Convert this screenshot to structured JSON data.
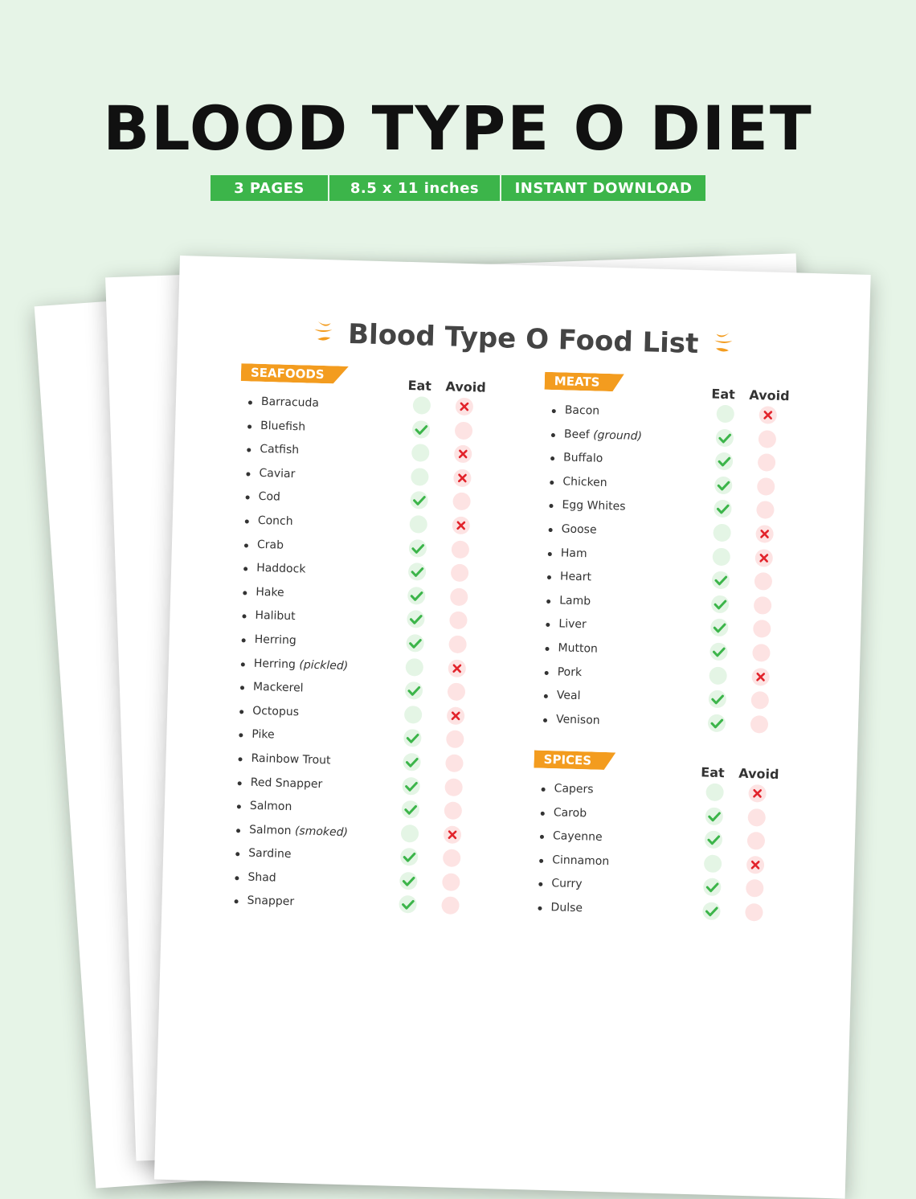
{
  "title": "BLOOD TYPE O DIET",
  "info_bar": [
    "3 PAGES",
    "8.5 x 11 inches",
    "INSTANT DOWNLOAD"
  ],
  "document": {
    "title": "Blood Type O Food List",
    "sections": [
      {
        "label": "SEAFOODS",
        "eat_label": "Eat",
        "avoid_label": "Avoid",
        "items": [
          {
            "name": "Barracuda",
            "note": "",
            "verdict": "avoid"
          },
          {
            "name": "Bluefish",
            "note": "",
            "verdict": "eat"
          },
          {
            "name": "Catfish",
            "note": "",
            "verdict": "avoid"
          },
          {
            "name": "Caviar",
            "note": "",
            "verdict": "avoid"
          },
          {
            "name": "Cod",
            "note": "",
            "verdict": "eat"
          },
          {
            "name": "Conch",
            "note": "",
            "verdict": "avoid"
          },
          {
            "name": "Crab",
            "note": "",
            "verdict": "eat"
          },
          {
            "name": "Haddock",
            "note": "",
            "verdict": "eat"
          },
          {
            "name": "Hake",
            "note": "",
            "verdict": "eat"
          },
          {
            "name": "Halibut",
            "note": "",
            "verdict": "eat"
          },
          {
            "name": "Herring",
            "note": "",
            "verdict": "eat"
          },
          {
            "name": "Herring",
            "note": "(pickled)",
            "verdict": "avoid"
          },
          {
            "name": "Mackerel",
            "note": "",
            "verdict": "eat"
          },
          {
            "name": "Octopus",
            "note": "",
            "verdict": "avoid"
          },
          {
            "name": "Pike",
            "note": "",
            "verdict": "eat"
          },
          {
            "name": "Rainbow Trout",
            "note": "",
            "verdict": "eat"
          },
          {
            "name": "Red Snapper",
            "note": "",
            "verdict": "eat"
          },
          {
            "name": "Salmon",
            "note": "",
            "verdict": "eat"
          },
          {
            "name": "Salmon",
            "note": "(smoked)",
            "verdict": "avoid"
          },
          {
            "name": "Sardine",
            "note": "",
            "verdict": "eat"
          },
          {
            "name": "Shad",
            "note": "",
            "verdict": "eat"
          },
          {
            "name": "Snapper",
            "note": "",
            "verdict": "eat"
          }
        ]
      },
      {
        "label": "MEATS",
        "eat_label": "Eat",
        "avoid_label": "Avoid",
        "items": [
          {
            "name": "Bacon",
            "note": "",
            "verdict": "avoid"
          },
          {
            "name": "Beef",
            "note": "(ground)",
            "verdict": "eat"
          },
          {
            "name": "Buffalo",
            "note": "",
            "verdict": "eat"
          },
          {
            "name": "Chicken",
            "note": "",
            "verdict": "eat"
          },
          {
            "name": "Egg Whites",
            "note": "",
            "verdict": "eat"
          },
          {
            "name": "Goose",
            "note": "",
            "verdict": "avoid"
          },
          {
            "name": "Ham",
            "note": "",
            "verdict": "avoid"
          },
          {
            "name": "Heart",
            "note": "",
            "verdict": "eat"
          },
          {
            "name": "Lamb",
            "note": "",
            "verdict": "eat"
          },
          {
            "name": "Liver",
            "note": "",
            "verdict": "eat"
          },
          {
            "name": "Mutton",
            "note": "",
            "verdict": "eat"
          },
          {
            "name": "Pork",
            "note": "",
            "verdict": "avoid"
          },
          {
            "name": "Veal",
            "note": "",
            "verdict": "eat"
          },
          {
            "name": "Venison",
            "note": "",
            "verdict": "eat"
          }
        ]
      },
      {
        "label": "SPICES",
        "eat_label": "Eat",
        "avoid_label": "Avoid",
        "items": [
          {
            "name": "Capers",
            "note": "",
            "verdict": "avoid"
          },
          {
            "name": "Carob",
            "note": "",
            "verdict": "eat"
          },
          {
            "name": "Cayenne",
            "note": "",
            "verdict": "eat"
          },
          {
            "name": "Cinnamon",
            "note": "",
            "verdict": "avoid"
          },
          {
            "name": "Curry",
            "note": "",
            "verdict": "eat"
          },
          {
            "name": "Dulse",
            "note": "",
            "verdict": "eat"
          }
        ]
      }
    ]
  },
  "colors": {
    "background": "#e6f4e7",
    "info_bar": "#3cb54a",
    "section_label": "#f39c1f",
    "check": "#3cb54a",
    "cross": "#e2232b"
  }
}
